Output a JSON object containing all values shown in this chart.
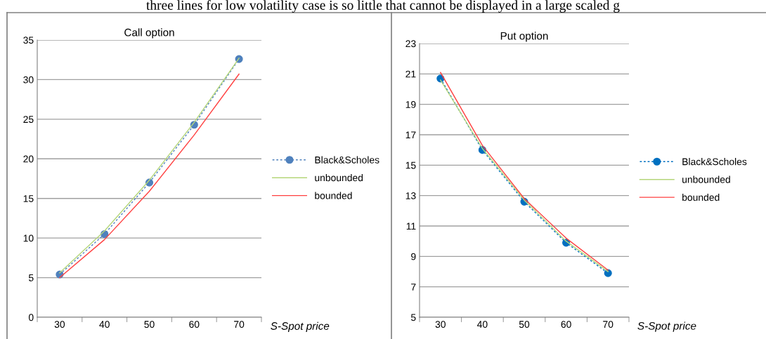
{
  "chart_data": [
    {
      "type": "line",
      "title": "Call option",
      "xlabel": "S-Spot price",
      "categories": [
        "30",
        "40",
        "50",
        "60",
        "70"
      ],
      "ylim": [
        0,
        35
      ],
      "yticks": [
        0,
        5,
        10,
        15,
        20,
        25,
        30,
        35
      ],
      "grid": "y",
      "legend": "right",
      "annotations": [
        "three lines for low volatility case is so little that cannot be displayed in a large scaled g"
      ],
      "series": [
        {
          "name": "Black&Scholes",
          "color": "#4f81bd",
          "values": [
            5.4,
            10.5,
            17.0,
            24.3,
            32.6
          ],
          "marker": "circle",
          "line_style": "dashed"
        },
        {
          "name": "unbounded",
          "color": "#b5d67a",
          "values": [
            5.6,
            10.9,
            17.3,
            24.6,
            32.7
          ]
        },
        {
          "name": "bounded",
          "color": "#ff4040",
          "values": [
            5.0,
            9.8,
            15.9,
            23.0,
            30.7
          ]
        }
      ]
    },
    {
      "type": "line",
      "title": "Put option",
      "xlabel": "S-Spot price",
      "categories": [
        "30",
        "40",
        "50",
        "60",
        "70"
      ],
      "ylim": [
        5,
        23
      ],
      "yticks": [
        5,
        7,
        9,
        11,
        13,
        15,
        17,
        19,
        21,
        23
      ],
      "grid": "y",
      "legend": "right",
      "series": [
        {
          "name": "Black&Scholes",
          "color": "#0070c0",
          "values": [
            20.7,
            16.0,
            12.6,
            9.9,
            7.9
          ],
          "marker": "circle",
          "line_style": "dashed"
        },
        {
          "name": "unbounded",
          "color": "#b5d67a",
          "values": [
            20.6,
            16.1,
            12.7,
            10.0,
            8.0
          ]
        },
        {
          "name": "bounded",
          "color": "#ff4040",
          "values": [
            21.1,
            16.3,
            12.8,
            10.2,
            8.1
          ]
        }
      ]
    }
  ]
}
